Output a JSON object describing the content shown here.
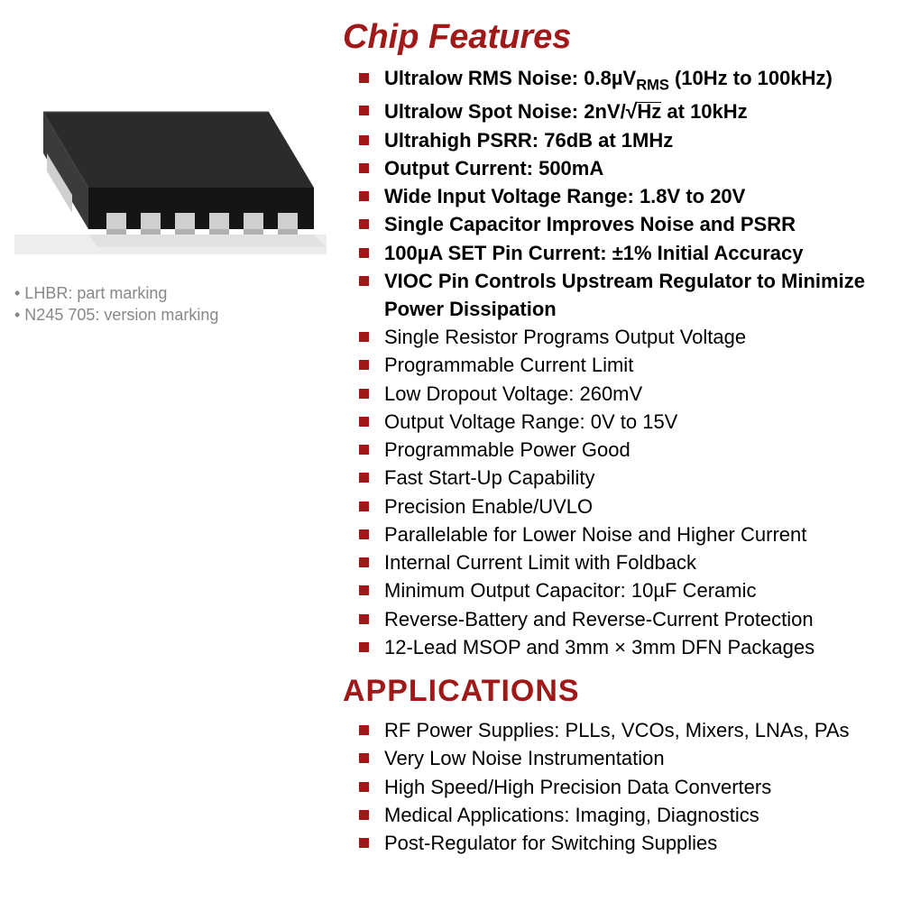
{
  "colors": {
    "accent": "#a01818",
    "text": "#000000",
    "note": "#888888",
    "bg": "#ffffff",
    "chip_top": "#2b2a29",
    "chip_side_dark": "#1a1918",
    "chip_side_light": "#4a4947",
    "lead": "#c9c9c9",
    "ground_shadow": "#e9e9e9"
  },
  "markings": {
    "line1": "• LHBR: part marking",
    "line2": "• N245 705: version marking"
  },
  "headings": {
    "features": "Chip Features",
    "applications": "APPLICATIONS"
  },
  "features": [
    {
      "bold": true,
      "html": "Ultralow RMS Noise: 0.8µV<span class='sub'>RMS</span> (10Hz to 100kHz)"
    },
    {
      "bold": true,
      "html": "Ultralow Spot Noise: 2nV/<span class='radical'>√</span><span class='sqrt'>Hz</span> at 10kHz"
    },
    {
      "bold": true,
      "html": "Ultrahigh PSRR: 76dB at 1MHz"
    },
    {
      "bold": true,
      "html": "Output Current: 500mA"
    },
    {
      "bold": true,
      "html": "Wide Input Voltage Range: 1.8V to 20V"
    },
    {
      "bold": true,
      "html": "Single Capacitor Improves Noise and PSRR"
    },
    {
      "bold": true,
      "html": "100µA SET Pin Current: ±1% Initial Accuracy"
    },
    {
      "bold": true,
      "html": "VIOC Pin Controls Upstream Regulator to Minimize Power Dissipation"
    },
    {
      "bold": false,
      "html": "Single Resistor Programs Output Voltage"
    },
    {
      "bold": false,
      "html": "Programmable Current Limit"
    },
    {
      "bold": false,
      "html": "Low Dropout Voltage: 260mV"
    },
    {
      "bold": false,
      "html": "Output Voltage Range: 0V to 15V"
    },
    {
      "bold": false,
      "html": "Programmable Power Good"
    },
    {
      "bold": false,
      "html": "Fast Start-Up Capability"
    },
    {
      "bold": false,
      "html": "Precision Enable/UVLO"
    },
    {
      "bold": false,
      "html": "Parallelable for Lower Noise and Higher Current"
    },
    {
      "bold": false,
      "html": "Internal Current Limit with Foldback"
    },
    {
      "bold": false,
      "html": "Minimum Output Capacitor: 10µF Ceramic"
    },
    {
      "bold": false,
      "html": "Reverse-Battery and Reverse-Current Protection"
    },
    {
      "bold": false,
      "html": "12-Lead MSOP and 3mm × 3mm DFN Packages"
    }
  ],
  "applications": [
    "RF Power Supplies: PLLs, VCOs, Mixers, LNAs, PAs",
    "Very Low Noise Instrumentation",
    "High Speed/High Precision Data Converters",
    "Medical Applications: Imaging, Diagnostics",
    "Post-Regulator for Switching Supplies"
  ]
}
